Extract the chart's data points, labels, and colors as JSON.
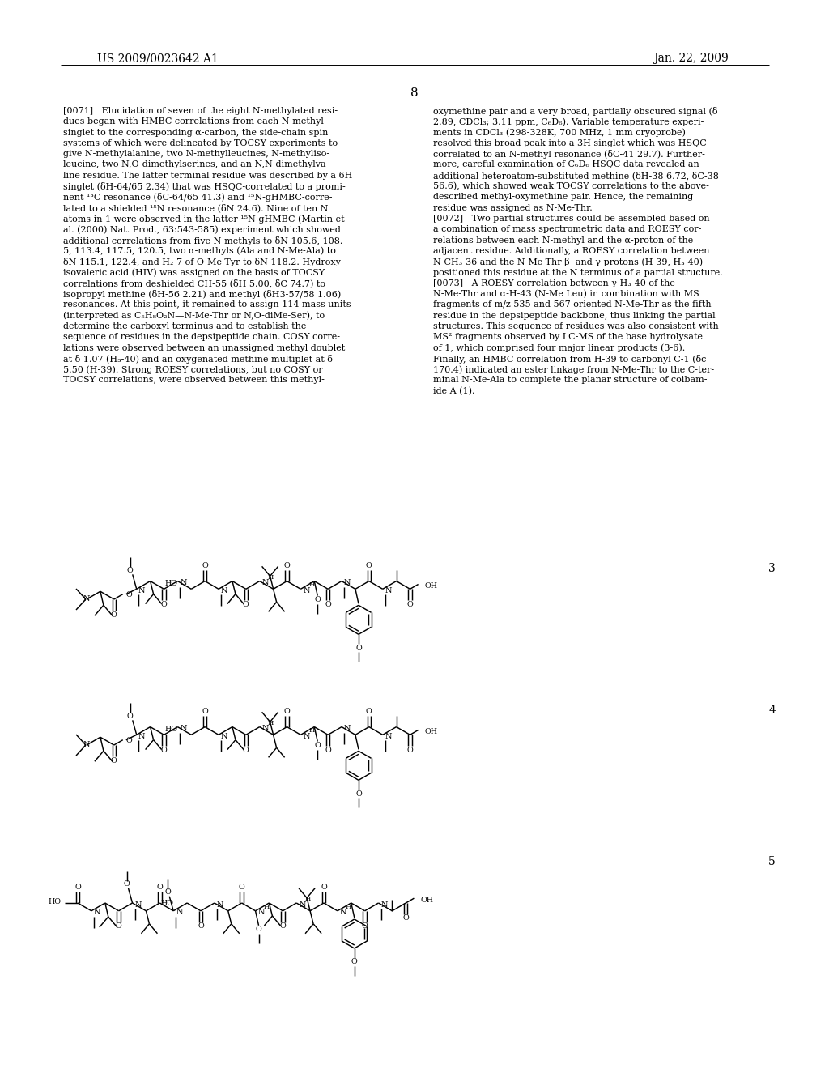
{
  "patent_number": "US 2009/0023642 A1",
  "date": "Jan. 22, 2009",
  "page_number": "8",
  "bg": "#ffffff",
  "left_col": [
    "[0071]   Elucidation of seven of the eight N-methylated resi-",
    "dues began with HMBC correlations from each N-methyl",
    "singlet to the corresponding α-carbon, the side-chain spin",
    "systems of which were delineated by TOCSY experiments to",
    "give N-methylalanine, two N-methylleucines, N-methyliso-",
    "leucine, two N,O-dimethylserines, and an N,N-dimethylva-",
    "line residue. The latter terminal residue was described by a 6H",
    "singlet (δH-64/65 2.34) that was HSQC-correlated to a promi-",
    "nent ¹³C resonance (δC-64/65 41.3) and ¹⁵N-gHMBC-corre-",
    "lated to a shielded ¹⁵N resonance (δN 24.6). Nine of ten N",
    "atoms in 1 were observed in the latter ¹⁵N-gHMBC (Martin et",
    "al. (2000) Nat. Prod., 63:543-585) experiment which showed",
    "additional correlations from five N-methyls to δN 105.6, 108.",
    "5, 113.4, 117.5, 120.5, two α-methyls (Ala and N-Me-Ala) to",
    "δN 115.1, 122.4, and H₂-7 of O-Me-Tyr to δN 118.2. Hydroxy-",
    "isovaleric acid (HIV) was assigned on the basis of TOCSY",
    "correlations from deshielded CH-55 (δH 5.00, δC 74.7) to",
    "isopropyl methine (δH-56 2.21) and methyl (δH3-57/58 1.06)",
    "resonances. At this point, it remained to assign 114 mass units",
    "(interpreted as C₅H₈O₂N—N-Me-Thr or N,O-diMe-Ser), to",
    "determine the carboxyl terminus and to establish the",
    "sequence of residues in the depsipeptide chain. COSY corre-",
    "lations were observed between an unassigned methyl doublet",
    "at δ 1.07 (H₃-40) and an oxygenated methine multiplet at δ",
    "5.50 (H-39). Strong ROESY correlations, but no COSY or",
    "TOCSY correlations, were observed between this methyl-"
  ],
  "right_col": [
    "oxymethine pair and a very broad, partially obscured signal (δ",
    "2.89, CDCl₃; 3.11 ppm, C₆D₆). Variable temperature experi-",
    "ments in CDCl₃ (298-328K, 700 MHz, 1 mm cryoprobe)",
    "resolved this broad peak into a 3H singlet which was HSQC-",
    "correlated to an N-methyl resonance (δC-41 29.7). Further-",
    "more, careful examination of C₆D₆ HSQC data revealed an",
    "additional heteroatom-substituted methine (δH-38 6.72, δC-38",
    "56.6), which showed weak TOCSY correlations to the above-",
    "described methyl-oxymethine pair. Hence, the remaining",
    "residue was assigned as N-Me-Thr.",
    "[0072]   Two partial structures could be assembled based on",
    "a combination of mass spectrometric data and ROESY cor-",
    "relations between each N-methyl and the α-proton of the",
    "adjacent residue. Additionally, a ROESY correlation between",
    "N-CH₃-36 and the N-Me-Thr β- and γ-protons (H-39, H₃-40)",
    "positioned this residue at the N terminus of a partial structure.",
    "[0073]   A ROESY correlation between γ-H₃-40 of the",
    "N-Me-Thr and α-H-43 (N-Me Leu) in combination with MS",
    "fragments of m/z 535 and 567 oriented N-Me-Thr as the fifth",
    "residue in the depsipeptide backbone, thus linking the partial",
    "structures. This sequence of residues was also consistent with",
    "MS² fragments observed by LC-MS of the base hydrolysate",
    "of 1, which comprised four major linear products (3-6).",
    "Finally, an HMBC correlation from H-39 to carbonyl C-1 (δc",
    "170.4) indicated an ester linkage from N-Me-Thr to the C-ter-",
    "minal N-Me-Ala to complete the planar structure of coibam-",
    "ide A (1)."
  ]
}
